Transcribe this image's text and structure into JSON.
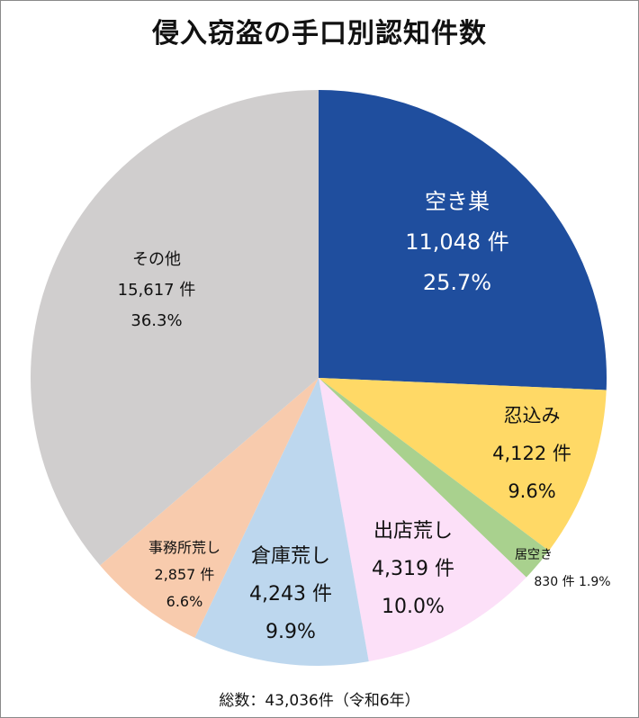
{
  "title": "侵入窃盗の手口別認知件数",
  "footer": "総数：43,036件（令和6年）",
  "chart_data": {
    "type": "pie",
    "title": "侵入窃盗の手口別認知件数",
    "total": 43036,
    "total_label": "総数：43,036件（令和6年）",
    "start_angle": "12 o'clock, clockwise",
    "slices": [
      {
        "name": "空き巣",
        "value": 11048,
        "percent": 25.7,
        "count_label": "11,048 件",
        "percent_label": "25.7%",
        "color": "#1f4e9e"
      },
      {
        "name": "忍込み",
        "value": 4122,
        "percent": 9.6,
        "count_label": "4,122 件",
        "percent_label": "9.6%",
        "color": "#ffd966"
      },
      {
        "name": "居空き",
        "value": 830,
        "percent": 1.9,
        "count_label": "830 件",
        "percent_label": "1.9%",
        "color": "#a9d18e"
      },
      {
        "name": "出店荒し",
        "value": 4319,
        "percent": 10.0,
        "count_label": "4,319 件",
        "percent_label": "10.0%",
        "color": "#fce0f8"
      },
      {
        "name": "倉庫荒し",
        "value": 4243,
        "percent": 9.9,
        "count_label": "4,243 件",
        "percent_label": "9.9%",
        "color": "#bdd7ee"
      },
      {
        "name": "事務所荒し",
        "value": 2857,
        "percent": 6.6,
        "count_label": "2,857 件",
        "percent_label": "6.6%",
        "color": "#f8cbad"
      },
      {
        "name": "その他",
        "value": 15617,
        "percent": 36.3,
        "count_label": "15,617 件",
        "percent_label": "36.3%",
        "color": "#d0cece"
      }
    ]
  },
  "labels": {
    "s0": {
      "name": "空き巣",
      "count": "11,048 件",
      "pct": "25.7%"
    },
    "s1": {
      "name": "忍込み",
      "count": "4,122 件",
      "pct": "9.6%"
    },
    "s2": {
      "name": "居空き",
      "countpct": "830 件 1.9%"
    },
    "s3": {
      "name": "出店荒し",
      "count": "4,319 件",
      "pct": "10.0%"
    },
    "s4": {
      "name": "倉庫荒し",
      "count": "4,243 件",
      "pct": "9.9%"
    },
    "s5": {
      "name": "事務所荒し",
      "count": "2,857 件",
      "pct": "6.6%"
    },
    "s6": {
      "name": "その他",
      "count": "15,617 件",
      "pct": "36.3%"
    }
  }
}
